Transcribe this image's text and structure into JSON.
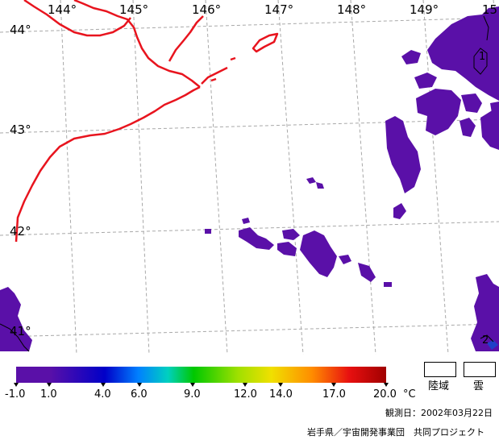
{
  "map": {
    "longitudes": [
      "144°",
      "145°",
      "146°",
      "147°",
      "148°",
      "149°",
      "15"
    ],
    "latitudes": [
      "44°",
      "43°",
      "42°",
      "41°"
    ],
    "contours": [
      "1",
      "2"
    ],
    "colors": {
      "coast": "#e8141e",
      "sst": "#5a10a8",
      "grid": "#a0a0a0"
    }
  },
  "colorbar": {
    "ticks": [
      "-1.0",
      "1.0",
      "4.0",
      "6.0",
      "9.0",
      "12.0",
      "14.0",
      "17.0",
      "20.0"
    ],
    "unit": "°C"
  },
  "legend": {
    "land": "陸域",
    "cloud": "雲"
  },
  "footer": {
    "date": "観測日：2002年03月22日",
    "credit": "岩手県／宇宙開発事業団　共同プロジェクト"
  }
}
